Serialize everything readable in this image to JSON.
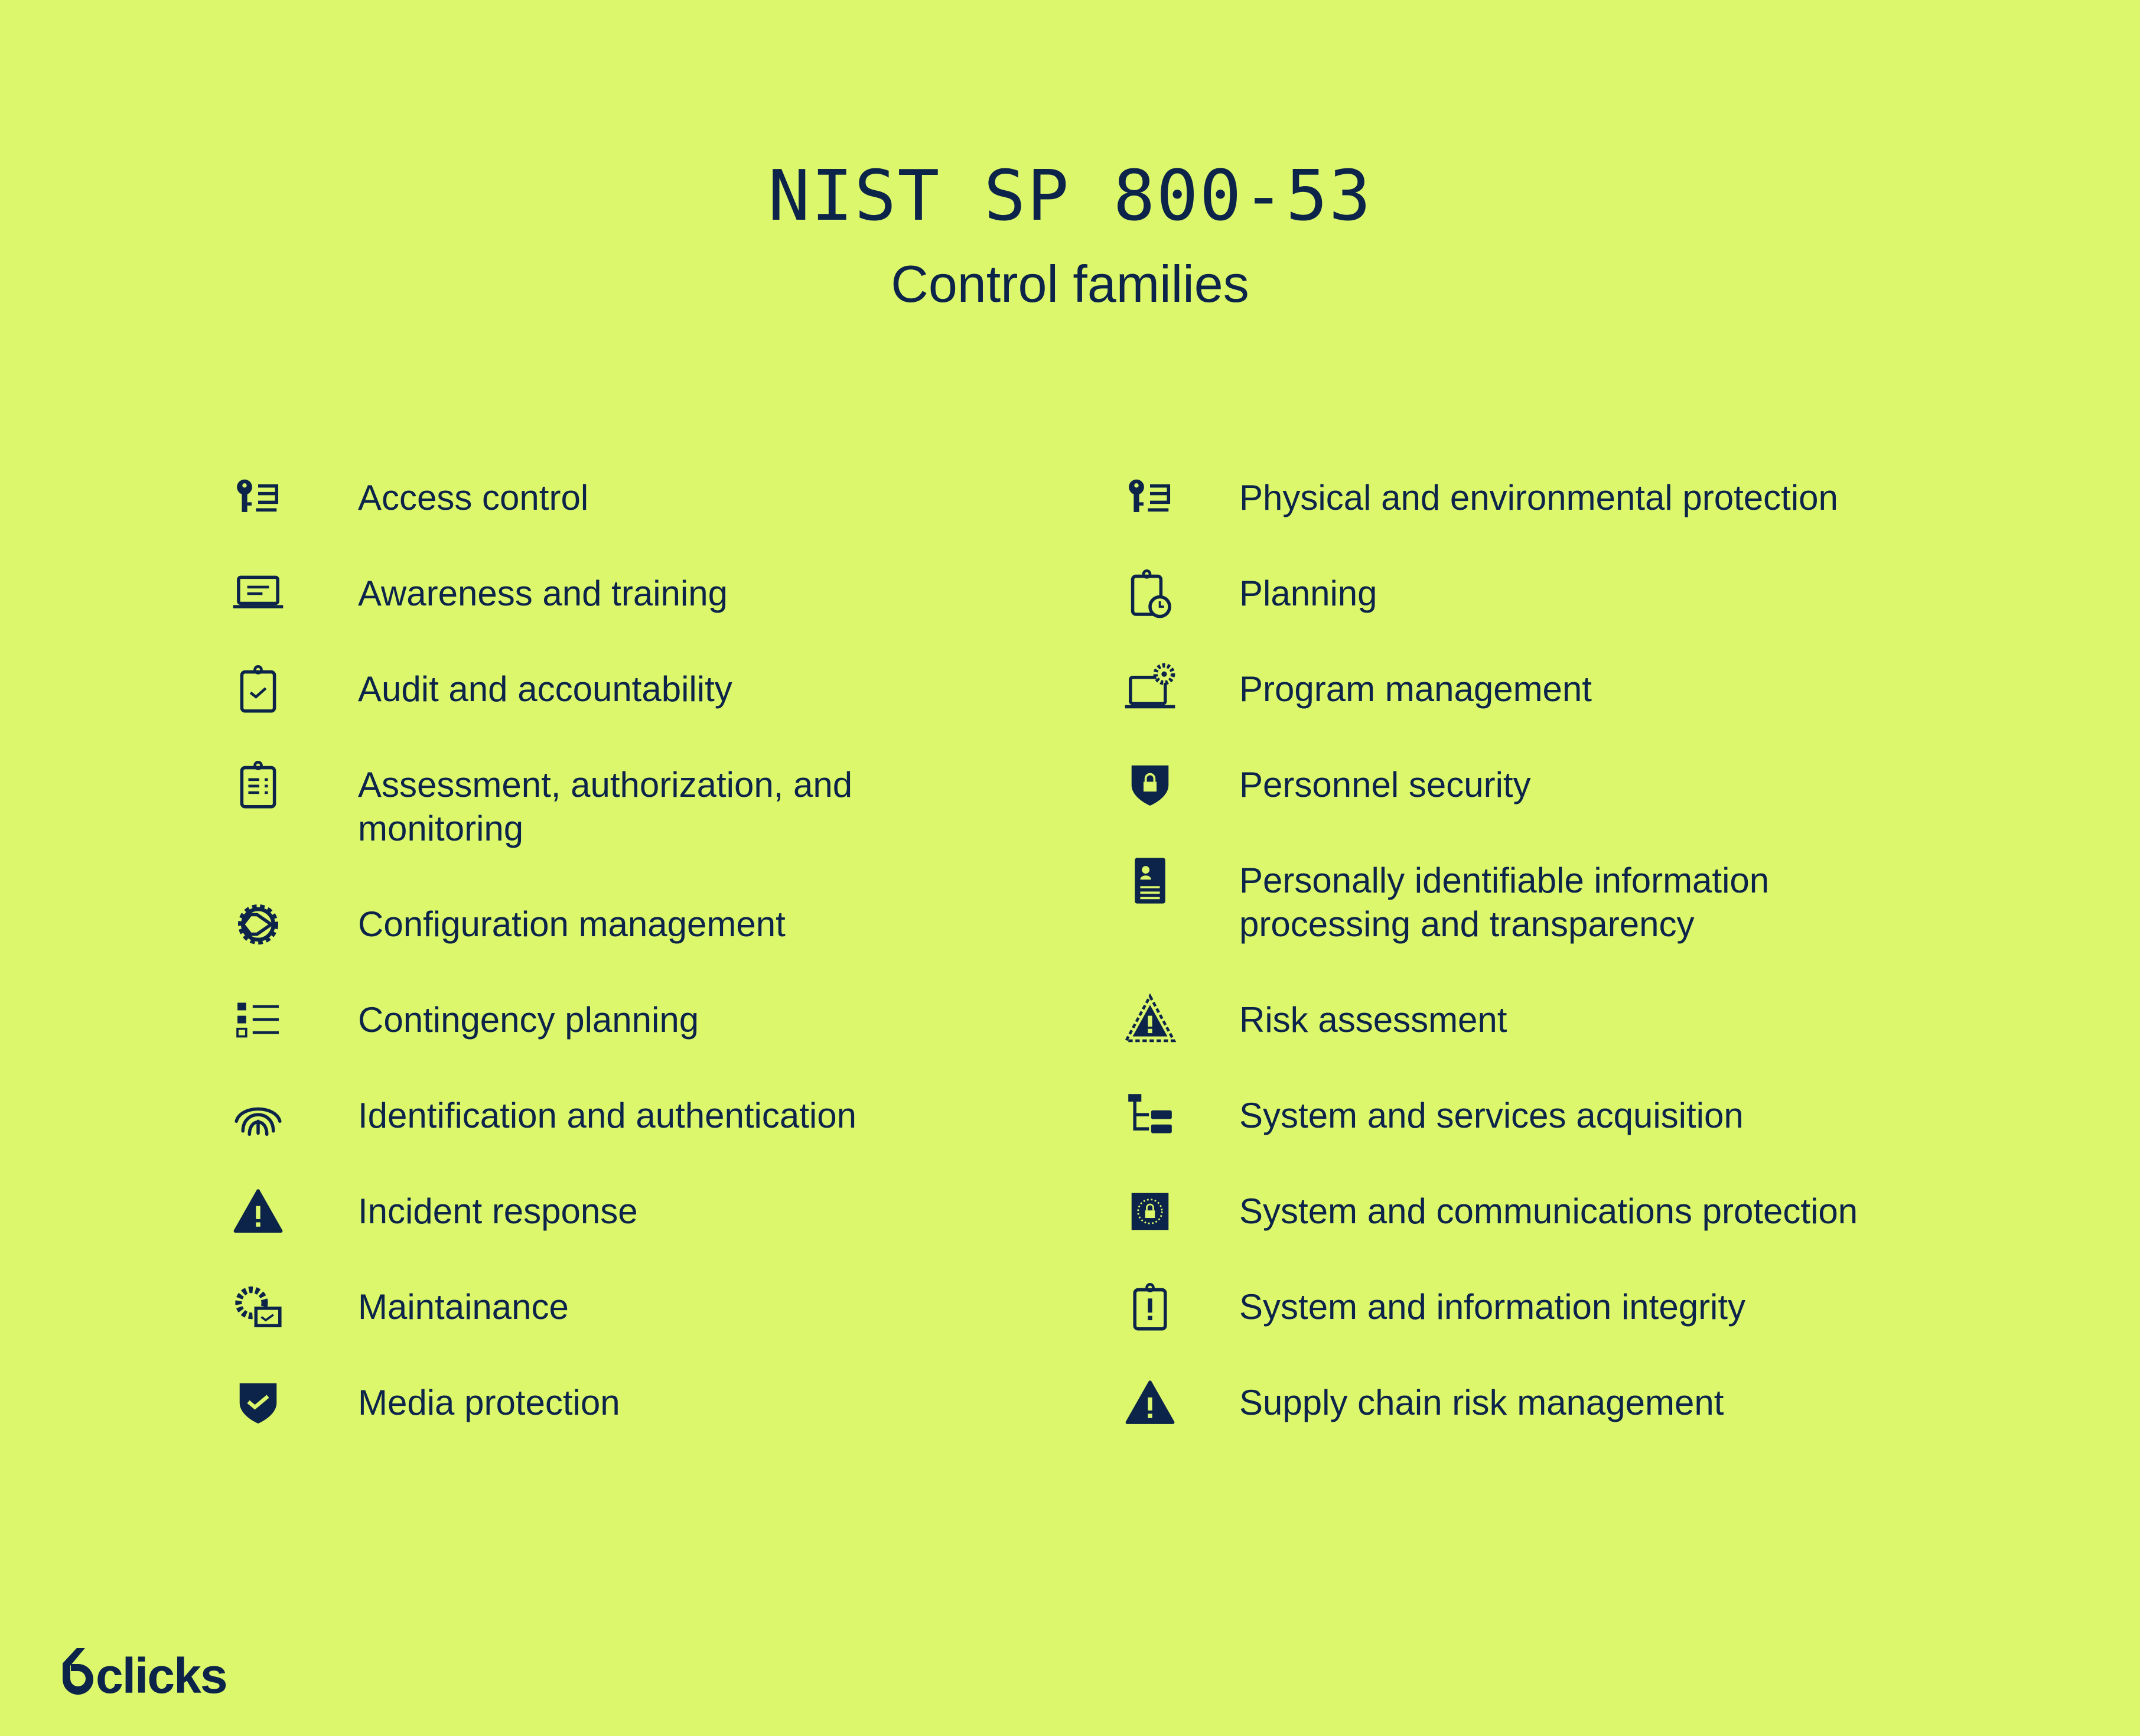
{
  "header": {
    "title": "NIST SP 800-53",
    "subtitle": "Control families"
  },
  "colors": {
    "background": "#dcf76c",
    "ink": "#0c2449"
  },
  "left_column": [
    {
      "icon": "key-list-icon",
      "label": "Access control"
    },
    {
      "icon": "laptop-icon",
      "label": "Awareness and training"
    },
    {
      "icon": "clipboard-check-icon",
      "label": "Audit and accountability"
    },
    {
      "icon": "clipboard-list-icon",
      "label": "Assessment, authorization, and monitoring"
    },
    {
      "icon": "gear-play-icon",
      "label": "Configuration management"
    },
    {
      "icon": "list-icon",
      "label": "Contingency planning"
    },
    {
      "icon": "fingerprint-icon",
      "label": "Identification and authentication"
    },
    {
      "icon": "warning-icon",
      "label": "Incident response"
    },
    {
      "icon": "gear-window-icon",
      "label": "Maintainance"
    },
    {
      "icon": "shield-check-icon",
      "label": "Media protection"
    }
  ],
  "right_column": [
    {
      "icon": "key-list-icon",
      "label": "Physical and environmental protection"
    },
    {
      "icon": "clipboard-clock-icon",
      "label": "Planning"
    },
    {
      "icon": "laptop-gear-icon",
      "label": "Program management"
    },
    {
      "icon": "shield-lock-icon",
      "label": "Personnel security"
    },
    {
      "icon": "id-document-icon",
      "label": "Personally identifiable information processing and transparency"
    },
    {
      "icon": "warning-dashed-icon",
      "label": "Risk assessment"
    },
    {
      "icon": "hierarchy-icon",
      "label": "System and services acquisition"
    },
    {
      "icon": "lock-chip-icon",
      "label": "System and communications protection"
    },
    {
      "icon": "clipboard-alert-icon",
      "label": "System and information integrity"
    },
    {
      "icon": "warning-icon",
      "label": "Supply chain risk management"
    }
  ],
  "logo": {
    "text": "6clicks"
  }
}
